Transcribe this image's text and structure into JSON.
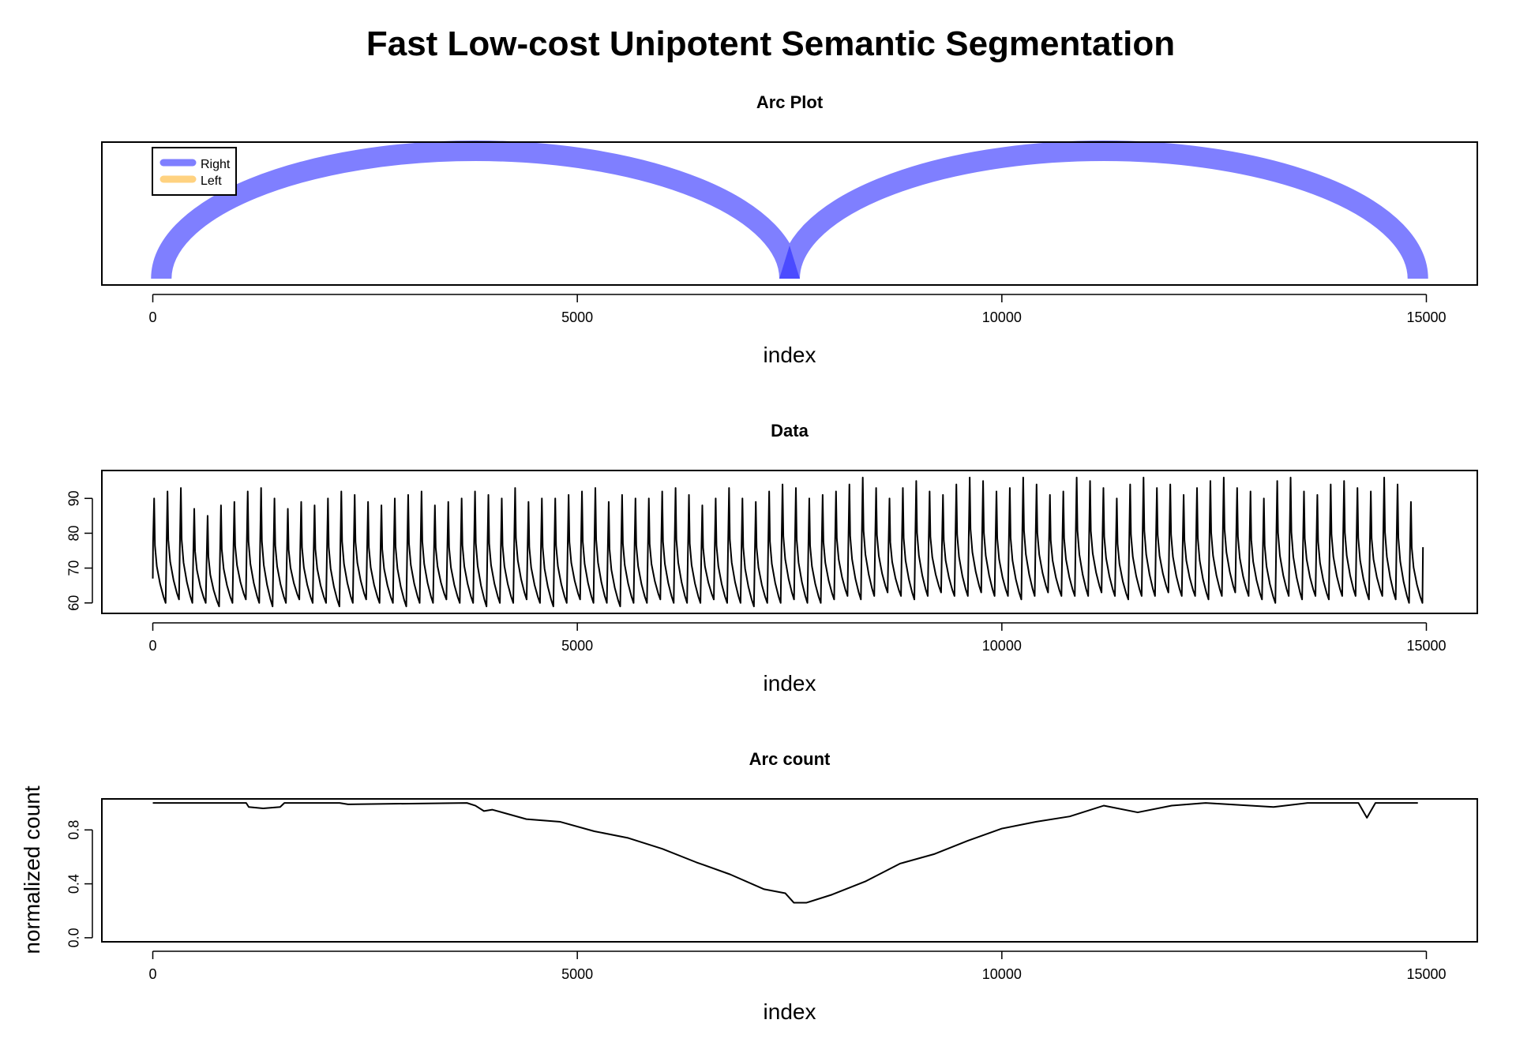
{
  "figure": {
    "title": "Fast Low-cost Unipotent Semantic Segmentation"
  },
  "chart_data": [
    {
      "type": "arc",
      "title": "Arc Plot",
      "xlabel": "index",
      "ylabel": "",
      "xlim": [
        -600,
        15600
      ],
      "x_ticks": [
        0,
        5000,
        10000,
        15000
      ],
      "y_ticks": [],
      "grid": false,
      "legend": {
        "position": "top-left",
        "entries": [
          {
            "label": "Right",
            "color": "#7f7fff"
          },
          {
            "label": "Left",
            "color": "#ffd280"
          }
        ]
      },
      "arcs": [
        {
          "from": 100,
          "to": 7500,
          "direction": "Right",
          "color": "#7f7fff"
        },
        {
          "from": 7500,
          "to": 14900,
          "direction": "Right",
          "color": "#7f7fff"
        }
      ],
      "overlap_color": "#3f3fff"
    },
    {
      "type": "line",
      "title": "Data",
      "xlabel": "index",
      "ylabel": "",
      "xlim": [
        -600,
        15600
      ],
      "ylim": [
        57,
        98
      ],
      "x_ticks": [
        0,
        5000,
        10000,
        15000
      ],
      "y_ticks": [
        60,
        70,
        80,
        90
      ],
      "grid": false,
      "color": "#000000",
      "series": [
        {
          "x_start": 0,
          "x_end": 14960,
          "period_approx": 170,
          "baseline_start": 67,
          "end_value": 76,
          "peaks": [
            90,
            92,
            93,
            87,
            85,
            88,
            89,
            92,
            93,
            90,
            87,
            89,
            88,
            90,
            92,
            91,
            89,
            88,
            90,
            91,
            92,
            88,
            89,
            90,
            92,
            91,
            90,
            93,
            89,
            90,
            90,
            91,
            92,
            93,
            89,
            91,
            90,
            90,
            92,
            93,
            91,
            88,
            90,
            93,
            90,
            89,
            92,
            94,
            93,
            90,
            91,
            92,
            94,
            96,
            93,
            90,
            93,
            95,
            92,
            91,
            94,
            96,
            95,
            92,
            93,
            96,
            94,
            91,
            92,
            96,
            95,
            93,
            90,
            94,
            96,
            93,
            94,
            91,
            93,
            95,
            96,
            93,
            92,
            90,
            95,
            96,
            92,
            91,
            94,
            95,
            93,
            92,
            96,
            94,
            89
          ],
          "troughs": [
            60,
            61,
            60,
            60,
            59,
            60,
            61,
            60,
            59,
            60,
            61,
            60,
            60,
            59,
            60,
            61,
            60,
            60,
            59,
            60,
            60,
            61,
            60,
            60,
            59,
            60,
            60,
            61,
            60,
            59,
            60,
            61,
            60,
            60,
            59,
            60,
            60,
            61,
            60,
            60,
            60,
            61,
            60,
            60,
            59,
            60,
            60,
            61,
            60,
            60,
            61,
            62,
            61,
            62,
            63,
            62,
            61,
            62,
            63,
            62,
            62,
            63,
            62,
            62,
            61,
            62,
            63,
            62,
            62,
            62,
            63,
            62,
            61,
            62,
            62,
            63,
            62,
            62,
            61,
            62,
            63,
            62,
            61,
            60,
            62,
            61,
            62,
            61,
            62,
            62,
            61,
            62,
            61,
            60,
            60
          ]
        }
      ]
    },
    {
      "type": "line",
      "title": "Arc count",
      "xlabel": "index",
      "ylabel": "normalized count",
      "xlim": [
        -600,
        15600
      ],
      "ylim": [
        -0.03,
        1.03
      ],
      "x_ticks": [
        0,
        5000,
        10000,
        15000
      ],
      "y_ticks": [
        "0.0",
        "0.4",
        "0.8"
      ],
      "y_tick_values": [
        0.0,
        0.4,
        0.8
      ],
      "grid": false,
      "color": "#000000",
      "series": [
        {
          "x": [
            0,
            1100,
            1130,
            1300,
            1500,
            1550,
            2200,
            2300,
            3700,
            3800,
            3900,
            4000,
            4400,
            4800,
            5200,
            5600,
            6000,
            6400,
            6800,
            7200,
            7450,
            7550,
            7700,
            8000,
            8400,
            8800,
            9200,
            9600,
            10000,
            10400,
            10800,
            11200,
            11600,
            12000,
            12400,
            13200,
            13600,
            14200,
            14300,
            14400,
            14900
          ],
          "y": [
            1.0,
            1.0,
            0.97,
            0.96,
            0.97,
            1.0,
            1.0,
            0.99,
            1.0,
            0.98,
            0.94,
            0.95,
            0.88,
            0.86,
            0.79,
            0.74,
            0.66,
            0.56,
            0.47,
            0.36,
            0.33,
            0.26,
            0.26,
            0.32,
            0.42,
            0.55,
            0.62,
            0.72,
            0.81,
            0.86,
            0.9,
            0.98,
            0.93,
            0.98,
            1.0,
            0.97,
            1.0,
            1.0,
            0.89,
            1.0,
            1.0
          ]
        }
      ]
    }
  ]
}
